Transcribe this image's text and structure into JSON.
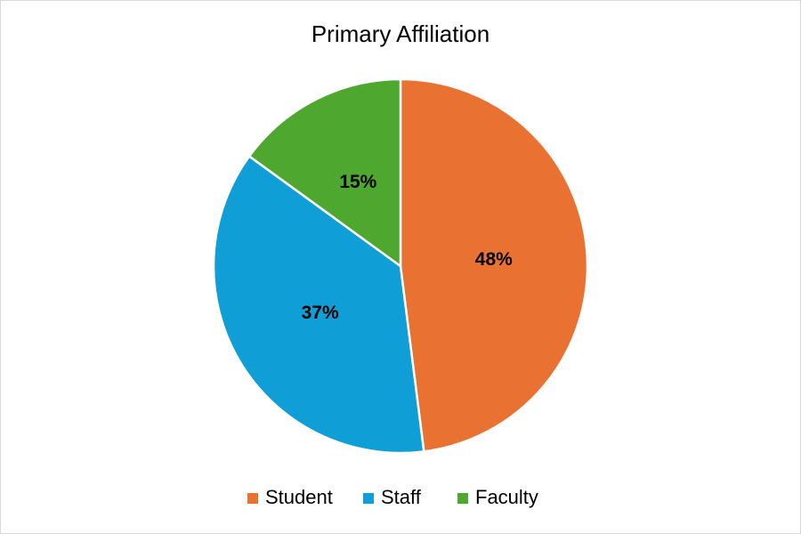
{
  "chart_data": {
    "type": "pie",
    "title": "Primary Affiliation",
    "categories": [
      "Student",
      "Staff",
      "Faculty"
    ],
    "values": [
      48,
      37,
      15
    ],
    "value_labels": [
      "48%",
      "37%",
      "15%"
    ],
    "colors": [
      "#E97132",
      "#0F9ED5",
      "#4EA72E"
    ],
    "legend": "bottom"
  }
}
